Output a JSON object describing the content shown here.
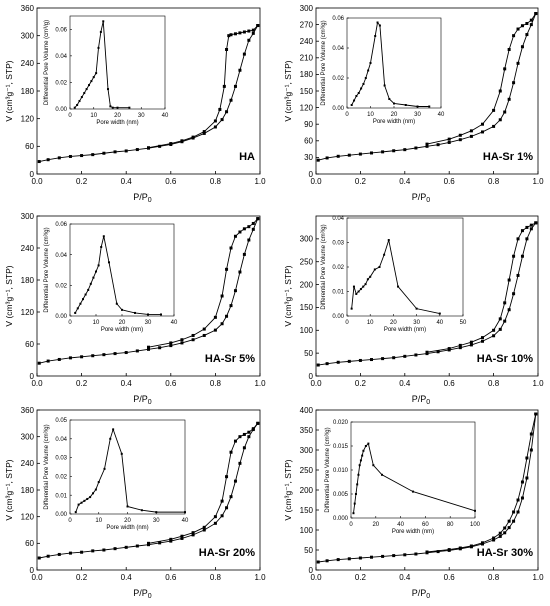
{
  "figure": {
    "x_caption": "P/P",
    "x_caption_sub": "0",
    "y_caption": "V (cm³g⁻¹, STP)"
  },
  "chart_data": [
    {
      "type": "line",
      "label": "HA",
      "xlim": [
        0,
        1.0
      ],
      "ylim": [
        0,
        360
      ],
      "xticks": [
        "0.0",
        "0.2",
        "0.4",
        "0.6",
        "0.8",
        "1.0"
      ],
      "yticks": [
        "0",
        "60",
        "120",
        "180",
        "240",
        "300",
        "360"
      ],
      "series": [
        {
          "x": [
            0.01,
            0.05,
            0.1,
            0.15,
            0.2,
            0.25,
            0.3,
            0.35,
            0.4,
            0.45,
            0.5,
            0.55,
            0.6,
            0.65,
            0.7,
            0.75,
            0.8,
            0.83,
            0.85,
            0.87,
            0.89,
            0.91,
            0.93,
            0.95,
            0.97,
            0.99
          ],
          "y": [
            27,
            31,
            35,
            38,
            40,
            42,
            45,
            48,
            50,
            53,
            56,
            60,
            64,
            70,
            78,
            88,
            102,
            118,
            135,
            160,
            190,
            225,
            260,
            290,
            305,
            322
          ]
        },
        {
          "x": [
            0.99,
            0.97,
            0.95,
            0.93,
            0.91,
            0.89,
            0.87,
            0.86,
            0.85,
            0.84,
            0.82,
            0.8,
            0.75,
            0.7,
            0.65,
            0.6,
            0.5
          ],
          "y": [
            322,
            312,
            310,
            308,
            306,
            304,
            302,
            300,
            270,
            190,
            140,
            115,
            92,
            80,
            72,
            66,
            57
          ]
        }
      ],
      "inset": {
        "xlabel": "Pore width (nm)",
        "ylabel": "Differential Pore Volume (cm³/g)",
        "xlim": [
          0,
          40
        ],
        "ylim": [
          0,
          0.07
        ],
        "xticks": [
          "0",
          "10",
          "20",
          "30",
          "40"
        ],
        "yticks": [
          "0.00",
          "0.02",
          "0.04",
          "0.06"
        ],
        "x": [
          2,
          3,
          4,
          5,
          6,
          7,
          8,
          9,
          10,
          11,
          12,
          13,
          14,
          16,
          17,
          18,
          20,
          25
        ],
        "y": [
          0.001,
          0.003,
          0.006,
          0.009,
          0.012,
          0.015,
          0.018,
          0.021,
          0.024,
          0.027,
          0.046,
          0.058,
          0.066,
          0.015,
          0.002,
          0.001,
          0.001,
          0.001
        ]
      }
    },
    {
      "type": "line",
      "label": "HA-Sr 1%",
      "xlim": [
        0,
        1.0
      ],
      "ylim": [
        0,
        300
      ],
      "xticks": [
        "0.0",
        "0.2",
        "0.4",
        "0.6",
        "0.8",
        "1.0"
      ],
      "yticks": [
        "0",
        "30",
        "60",
        "90",
        "120",
        "150",
        "180",
        "210",
        "240",
        "270",
        "300"
      ],
      "series": [
        {
          "x": [
            0.01,
            0.05,
            0.1,
            0.15,
            0.2,
            0.25,
            0.3,
            0.35,
            0.4,
            0.45,
            0.5,
            0.55,
            0.6,
            0.65,
            0.7,
            0.75,
            0.8,
            0.83,
            0.85,
            0.87,
            0.89,
            0.91,
            0.93,
            0.95,
            0.97,
            0.99
          ],
          "y": [
            25,
            29,
            32,
            34,
            36,
            38,
            40,
            42,
            44,
            47,
            50,
            53,
            57,
            62,
            68,
            76,
            86,
            98,
            112,
            135,
            165,
            200,
            230,
            252,
            270,
            290
          ]
        },
        {
          "x": [
            0.99,
            0.97,
            0.95,
            0.93,
            0.91,
            0.89,
            0.87,
            0.85,
            0.83,
            0.8,
            0.75,
            0.7,
            0.65,
            0.6,
            0.5
          ],
          "y": [
            290,
            278,
            272,
            268,
            262,
            250,
            225,
            190,
            150,
            115,
            90,
            78,
            70,
            63,
            54
          ]
        }
      ],
      "inset": {
        "xlabel": "Pore width (nm)",
        "ylabel": "Differential Pore Volume (cm³/g)",
        "xlim": [
          0,
          40
        ],
        "ylim": [
          0,
          0.06
        ],
        "xticks": [
          "0",
          "10",
          "20",
          "30",
          "40"
        ],
        "yticks": [
          "0.00",
          "0.02",
          "0.04",
          "0.06"
        ],
        "x": [
          2,
          3,
          4,
          5,
          6,
          7,
          8,
          9,
          10,
          12,
          13,
          14,
          16,
          18,
          20,
          25,
          30,
          35
        ],
        "y": [
          0.002,
          0.005,
          0.008,
          0.01,
          0.013,
          0.016,
          0.02,
          0.025,
          0.03,
          0.048,
          0.057,
          0.055,
          0.015,
          0.006,
          0.003,
          0.002,
          0.001,
          0.001
        ]
      }
    },
    {
      "type": "line",
      "label": "HA-Sr 5%",
      "xlim": [
        0,
        1.0
      ],
      "ylim": [
        0,
        300
      ],
      "xticks": [
        "0.0",
        "0.2",
        "0.4",
        "0.6",
        "0.8",
        "1.0"
      ],
      "yticks": [
        "0",
        "60",
        "120",
        "180",
        "240",
        "300"
      ],
      "series": [
        {
          "x": [
            0.01,
            0.05,
            0.1,
            0.15,
            0.2,
            0.25,
            0.3,
            0.35,
            0.4,
            0.45,
            0.5,
            0.55,
            0.6,
            0.65,
            0.7,
            0.75,
            0.8,
            0.83,
            0.85,
            0.87,
            0.89,
            0.91,
            0.93,
            0.95,
            0.97,
            0.99
          ],
          "y": [
            24,
            28,
            31,
            34,
            36,
            38,
            40,
            42,
            44,
            47,
            50,
            53,
            57,
            62,
            68,
            76,
            86,
            98,
            112,
            132,
            160,
            195,
            228,
            255,
            275,
            295
          ]
        },
        {
          "x": [
            0.99,
            0.97,
            0.95,
            0.93,
            0.91,
            0.89,
            0.87,
            0.85,
            0.83,
            0.8,
            0.75,
            0.7,
            0.65,
            0.6,
            0.5
          ],
          "y": [
            295,
            286,
            280,
            276,
            270,
            262,
            240,
            200,
            150,
            110,
            88,
            76,
            68,
            62,
            54
          ]
        }
      ],
      "inset": {
        "xlabel": "Pore width (nm)",
        "ylabel": "Differential Pore Volume (cm³/g)",
        "xlim": [
          0,
          40
        ],
        "ylim": [
          0,
          0.06
        ],
        "xticks": [
          "0",
          "10",
          "20",
          "30",
          "40"
        ],
        "yticks": [
          "0.00",
          "0.02",
          "0.04",
          "0.06"
        ],
        "x": [
          2,
          3,
          4,
          5,
          6,
          7,
          8,
          9,
          10,
          11,
          12,
          13,
          15,
          18,
          20,
          25,
          30,
          35
        ],
        "y": [
          0.002,
          0.005,
          0.008,
          0.011,
          0.014,
          0.017,
          0.021,
          0.025,
          0.029,
          0.033,
          0.045,
          0.052,
          0.035,
          0.008,
          0.004,
          0.002,
          0.001,
          0.001
        ]
      }
    },
    {
      "type": "line",
      "label": "HA-Sr 10%",
      "xlim": [
        0,
        1.0
      ],
      "ylim": [
        0,
        350
      ],
      "xticks": [
        "0.0",
        "0.2",
        "0.4",
        "0.6",
        "0.8",
        "1.0"
      ],
      "yticks": [
        "0",
        "50",
        "100",
        "150",
        "200",
        "250",
        "300"
      ],
      "series": [
        {
          "x": [
            0.01,
            0.05,
            0.1,
            0.15,
            0.2,
            0.25,
            0.3,
            0.35,
            0.4,
            0.45,
            0.5,
            0.55,
            0.6,
            0.65,
            0.7,
            0.75,
            0.8,
            0.83,
            0.85,
            0.87,
            0.89,
            0.91,
            0.93,
            0.95,
            0.97,
            0.99
          ],
          "y": [
            24,
            27,
            30,
            32,
            34,
            36,
            38,
            40,
            43,
            46,
            49,
            53,
            57,
            62,
            68,
            76,
            88,
            102,
            120,
            145,
            180,
            220,
            262,
            300,
            322,
            335
          ]
        },
        {
          "x": [
            0.99,
            0.97,
            0.95,
            0.93,
            0.91,
            0.89,
            0.87,
            0.85,
            0.83,
            0.8,
            0.75,
            0.7,
            0.65,
            0.6,
            0.5
          ],
          "y": [
            335,
            330,
            325,
            318,
            300,
            262,
            210,
            160,
            125,
            100,
            84,
            74,
            67,
            60,
            52
          ]
        }
      ],
      "inset": {
        "xlabel": "Pore width (nm)",
        "ylabel": "Differential Pore Volume (cm³/g)",
        "xlim": [
          0,
          50
        ],
        "ylim": [
          0,
          0.04
        ],
        "xticks": [
          "0",
          "10",
          "20",
          "30",
          "40",
          "50"
        ],
        "yticks": [
          "0.00",
          "0.01",
          "0.02",
          "0.03",
          "0.04"
        ],
        "x": [
          2,
          3,
          4,
          5,
          6,
          7,
          8,
          9,
          10,
          12,
          14,
          16,
          18,
          22,
          30,
          40
        ],
        "y": [
          0.003,
          0.012,
          0.009,
          0.01,
          0.011,
          0.012,
          0.013,
          0.015,
          0.016,
          0.019,
          0.02,
          0.025,
          0.031,
          0.012,
          0.003,
          0.001
        ]
      }
    },
    {
      "type": "line",
      "label": "HA-Sr 20%",
      "xlim": [
        0,
        1.0
      ],
      "ylim": [
        0,
        360
      ],
      "xticks": [
        "0.0",
        "0.2",
        "0.4",
        "0.6",
        "0.8",
        "1.0"
      ],
      "yticks": [
        "0",
        "60",
        "120",
        "180",
        "240",
        "300",
        "360"
      ],
      "series": [
        {
          "x": [
            0.01,
            0.05,
            0.1,
            0.15,
            0.2,
            0.25,
            0.3,
            0.35,
            0.4,
            0.45,
            0.5,
            0.55,
            0.6,
            0.65,
            0.7,
            0.75,
            0.8,
            0.83,
            0.85,
            0.87,
            0.89,
            0.91,
            0.93,
            0.95,
            0.97,
            0.99
          ],
          "y": [
            27,
            31,
            35,
            38,
            40,
            43,
            45,
            48,
            51,
            54,
            57,
            61,
            65,
            71,
            79,
            90,
            105,
            122,
            140,
            165,
            200,
            240,
            275,
            300,
            316,
            330
          ]
        },
        {
          "x": [
            0.99,
            0.97,
            0.95,
            0.93,
            0.91,
            0.89,
            0.87,
            0.85,
            0.83,
            0.8,
            0.75,
            0.7,
            0.65,
            0.6,
            0.5
          ],
          "y": [
            330,
            318,
            310,
            305,
            300,
            290,
            265,
            210,
            155,
            120,
            96,
            84,
            76,
            69,
            60
          ]
        }
      ],
      "inset": {
        "xlabel": "Pore width (nm)",
        "ylabel": "Differential Pore Volume (cm³/g)",
        "xlim": [
          0,
          40
        ],
        "ylim": [
          0,
          0.05
        ],
        "xticks": [
          "0",
          "10",
          "20",
          "30",
          "40"
        ],
        "yticks": [
          "0.00",
          "0.01",
          "0.02",
          "0.03",
          "0.04",
          "0.05"
        ],
        "x": [
          2,
          3,
          4,
          5,
          6,
          7,
          8,
          9,
          10,
          12,
          14,
          15,
          18,
          20,
          25,
          30,
          40
        ],
        "y": [
          0.001,
          0.005,
          0.006,
          0.007,
          0.008,
          0.009,
          0.011,
          0.013,
          0.017,
          0.024,
          0.04,
          0.045,
          0.032,
          0.004,
          0.002,
          0.001,
          0.001
        ]
      }
    },
    {
      "type": "line",
      "label": "HA-Sr 30%",
      "xlim": [
        0,
        1.0
      ],
      "ylim": [
        0,
        400
      ],
      "xticks": [
        "0.0",
        "0.2",
        "0.4",
        "0.6",
        "0.8",
        "1.0"
      ],
      "yticks": [
        "0",
        "50",
        "100",
        "150",
        "200",
        "250",
        "300",
        "350",
        "400"
      ],
      "series": [
        {
          "x": [
            0.01,
            0.05,
            0.1,
            0.15,
            0.2,
            0.25,
            0.3,
            0.35,
            0.4,
            0.45,
            0.5,
            0.55,
            0.6,
            0.65,
            0.7,
            0.75,
            0.8,
            0.83,
            0.85,
            0.87,
            0.89,
            0.91,
            0.93,
            0.95,
            0.97,
            0.99
          ],
          "y": [
            20,
            23,
            26,
            28,
            30,
            32,
            34,
            36,
            38,
            40,
            43,
            46,
            49,
            53,
            58,
            65,
            75,
            84,
            93,
            106,
            122,
            145,
            180,
            230,
            300,
            390
          ]
        },
        {
          "x": [
            0.99,
            0.97,
            0.95,
            0.93,
            0.91,
            0.89,
            0.87,
            0.85,
            0.83,
            0.8,
            0.75,
            0.7,
            0.65,
            0.6,
            0.5
          ],
          "y": [
            390,
            340,
            280,
            220,
            175,
            145,
            122,
            105,
            92,
            80,
            68,
            60,
            55,
            51,
            45
          ]
        }
      ],
      "inset": {
        "xlabel": "Pore width (nm)",
        "ylabel": "Differential Pore Volume (cm³/g)",
        "xlim": [
          0,
          100
        ],
        "ylim": [
          0,
          0.02
        ],
        "xticks": [
          "0",
          "20",
          "40",
          "60",
          "80",
          "100"
        ],
        "yticks": [
          "0.000",
          "0.005",
          "0.010",
          "0.015",
          "0.020"
        ],
        "x": [
          2,
          3,
          4,
          5,
          6,
          7,
          8,
          9,
          10,
          12,
          14,
          18,
          25,
          50,
          100
        ],
        "y": [
          0.001,
          0.003,
          0.005,
          0.007,
          0.009,
          0.011,
          0.012,
          0.013,
          0.014,
          0.015,
          0.0155,
          0.011,
          0.009,
          0.0055,
          0.0015
        ]
      }
    }
  ]
}
